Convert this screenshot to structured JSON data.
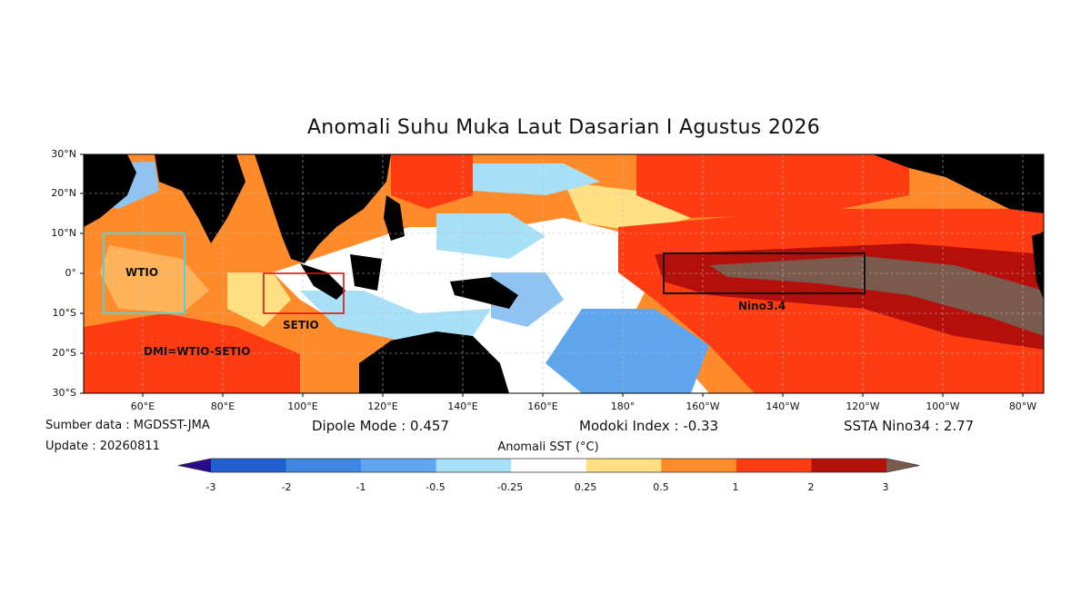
{
  "title": "Anomali Suhu Muka Laut Dasarian I Agustus 2026",
  "lat_labels": [
    "30°N",
    "20°N",
    "10°N",
    "0°",
    "10°S",
    "20°S",
    "30°S"
  ],
  "lon_labels": [
    "60°E",
    "80°E",
    "100°E",
    "120°E",
    "140°E",
    "160°E",
    "180°",
    "160°W",
    "140°W",
    "120°W",
    "100°W",
    "80°W"
  ],
  "regions": {
    "wtio": "WTIO",
    "setio": "SETIO",
    "nino34": "Nino3.4",
    "dmi": "DMI=WTIO-SETIO"
  },
  "source": "Sumber data : MGDSST-JMA",
  "update": "Update : 20260811",
  "dipole_mode": "Dipole Mode : 0.457",
  "modoki_index": "Modoki Index : -0.33",
  "ssta_nino34": "SSTA Nino34 : 2.77",
  "colorbar": {
    "title": "Anomali SST (°C)",
    "ticks": [
      "-3",
      "-2",
      "-1",
      "-0.5",
      "-0.25",
      "0.25",
      "0.5",
      "1",
      "2",
      "3"
    ],
    "colors": [
      "#2a0a8c",
      "#1f5fcf",
      "#3d87e3",
      "#5fa6ee",
      "#a8e0f7",
      "#ffffff",
      "#ffe083",
      "#ff8a2a",
      "#ff3b12",
      "#b40f0a",
      "#7a5a4c"
    ]
  },
  "map_colors": {
    "land": "#000000",
    "strong_warm": "#ff3b12",
    "warm": "#ff8a2a",
    "mild_warm": "#ffe083",
    "neutral": "#ffffff",
    "mild_cool": "#a8e0f7",
    "cool": "#5fa6ee",
    "very_warm": "#b40f0a",
    "extreme_warm": "#7a5a4c",
    "wtio_box": "#4fd3e0",
    "setio_box": "#e01010",
    "nino34_box": "#111111"
  }
}
